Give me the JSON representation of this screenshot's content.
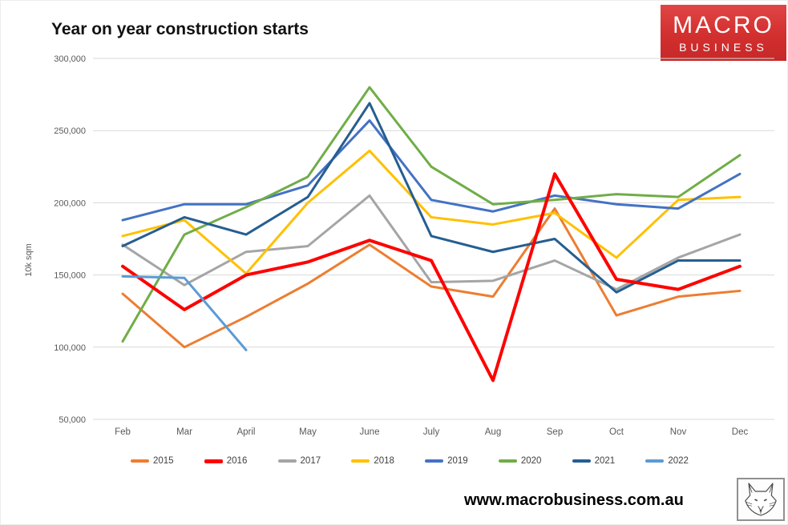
{
  "page": {
    "title": "Year on year construction starts",
    "background_color": "#ffffff"
  },
  "logo": {
    "line1": "MACRO",
    "line2": "BUSINESS",
    "bg_color": "#d32f2f",
    "text_color": "#ffffff"
  },
  "footer": {
    "url": "www.macrobusiness.com.au",
    "fox_icon": "fox-head-icon"
  },
  "chart_data": {
    "type": "line",
    "title": "Year on year construction starts",
    "xlabel": "",
    "ylabel": "10k sqm",
    "categories": [
      "Feb",
      "Mar",
      "April",
      "May",
      "June",
      "July",
      "Aug",
      "Sep",
      "Oct",
      "Nov",
      "Dec"
    ],
    "y_ticks": [
      300000,
      250000,
      200000,
      150000,
      100000,
      50000
    ],
    "y_tick_labels": [
      "300,000",
      "250,000",
      "200,000",
      "150,000",
      "100,000",
      "50,000"
    ],
    "ylim": [
      50000,
      300000
    ],
    "grid": true,
    "gridline_color": "#d9d9d9",
    "axis_text_color": "#595959",
    "legend_position": "bottom",
    "series": [
      {
        "name": "2015",
        "color": "#ED7D31",
        "values": [
          137000,
          100000,
          121000,
          144000,
          171000,
          142000,
          135000,
          196000,
          122000,
          135000,
          139000
        ]
      },
      {
        "name": "2016",
        "color": "#FF0000",
        "stroke_width": 4,
        "z": 9,
        "values": [
          156000,
          126000,
          150000,
          159000,
          174000,
          160000,
          77000,
          220000,
          147000,
          140000,
          156000
        ]
      },
      {
        "name": "2017",
        "color": "#A5A5A5",
        "values": [
          171000,
          143000,
          166000,
          170000,
          205000,
          145000,
          146000,
          160000,
          140000,
          162000,
          178000
        ]
      },
      {
        "name": "2018",
        "color": "#FFC000",
        "values": [
          177000,
          188000,
          151000,
          200000,
          236000,
          190000,
          185000,
          193000,
          162000,
          202000,
          204000
        ]
      },
      {
        "name": "2019",
        "color": "#4472C4",
        "values": [
          188000,
          199000,
          199000,
          212000,
          257000,
          202000,
          194000,
          205000,
          199000,
          196000,
          220000
        ]
      },
      {
        "name": "2020",
        "color": "#70AD47",
        "values": [
          104000,
          178000,
          197000,
          218000,
          280000,
          225000,
          199000,
          202000,
          206000,
          204000,
          233000
        ]
      },
      {
        "name": "2021",
        "color": "#255E91",
        "values": [
          170000,
          190000,
          178000,
          204000,
          269000,
          177000,
          166000,
          175000,
          138000,
          160000,
          160000
        ]
      },
      {
        "name": "2022",
        "color": "#5B9BD5",
        "z": 10,
        "values": [
          149000,
          148000,
          98000,
          null,
          null,
          null,
          null,
          null,
          null,
          null,
          null
        ]
      }
    ]
  }
}
